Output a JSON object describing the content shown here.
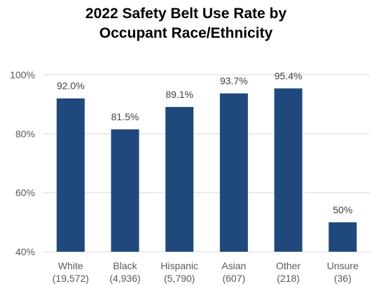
{
  "chart_data": {
    "type": "bar",
    "title_lines": [
      "2022 Safety Belt Use Rate by",
      "Occupant Race/Ethnicity"
    ],
    "categories": [
      {
        "name": "White",
        "n": "(19,572)"
      },
      {
        "name": "Black",
        "n": "(4,936)"
      },
      {
        "name": "Hispanic",
        "n": "(5,790)"
      },
      {
        "name": "Asian",
        "n": "(607)"
      },
      {
        "name": "Other",
        "n": "(218)"
      },
      {
        "name": "Unsure",
        "n": "(36)"
      }
    ],
    "values": [
      92.0,
      81.5,
      89.1,
      93.7,
      95.4,
      50
    ],
    "data_labels": [
      "92.0%",
      "81.5%",
      "89.1%",
      "93.7%",
      "95.4%",
      "50%"
    ],
    "ylim": [
      40,
      100
    ],
    "yticks": [
      40,
      60,
      80,
      100
    ],
    "ytick_labels": [
      "40%",
      "60%",
      "80%",
      "100%"
    ],
    "grid": true,
    "bar_color": "#1F497D",
    "grid_color": "#D9D9D9"
  }
}
